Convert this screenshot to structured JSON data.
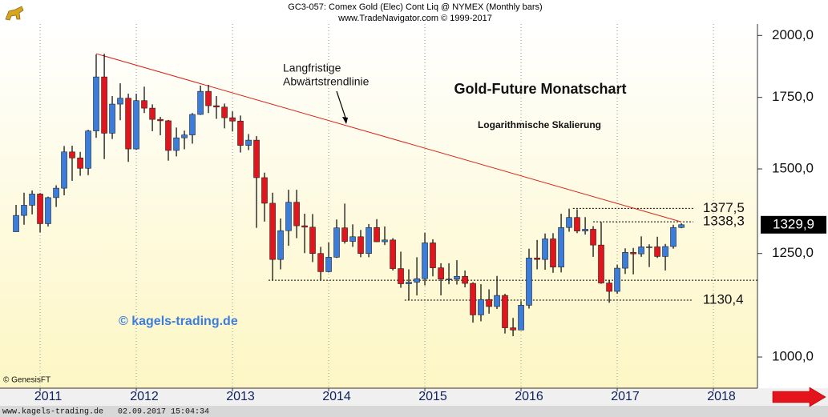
{
  "chart_data": {
    "type": "candlestick",
    "title": "GC3-057:  Comex Gold (Elec) Cont Liq @ NYMEX  (Monthly bars)",
    "subtitle": "www.TradeNavigator.com © 1999-2017",
    "chart_title": "Gold-Future Monatschart",
    "scale_note": "Logarithmische Skalierung",
    "trend_note": [
      "Langfristige",
      "Abwärtstrendlinie"
    ],
    "watermark": "© kagels-trading.de",
    "source": "© GenesisFT",
    "footer": "www.kagels-trading.de   02.09.2017 15:04:34",
    "log_scale": true,
    "grid": true,
    "up_color": "#3b7ddd",
    "down_color": "#e3141b",
    "trend_color": "#d9241c",
    "xlim": [
      2010.583,
      2018.458
    ],
    "xticks": [
      2011,
      2012,
      2013,
      2014,
      2015,
      2016,
      2017,
      2018
    ],
    "ylim": [
      935,
      2050
    ],
    "yticks": [
      {
        "value": 1000,
        "label": "1000,0"
      },
      {
        "value": 1250,
        "label": "1250,0"
      },
      {
        "value": 1500,
        "label": "1500,0"
      },
      {
        "value": 1750,
        "label": "1750,0"
      },
      {
        "value": 2000,
        "label": "2000,0"
      }
    ],
    "x": [
      2010.75,
      2010.833,
      2010.917,
      2011,
      2011.083,
      2011.167,
      2011.25,
      2011.333,
      2011.417,
      2011.5,
      2011.583,
      2011.667,
      2011.75,
      2011.833,
      2011.917,
      2012,
      2012.083,
      2012.167,
      2012.25,
      2012.333,
      2012.417,
      2012.5,
      2012.583,
      2012.667,
      2012.75,
      2012.833,
      2012.917,
      2013,
      2013.083,
      2013.167,
      2013.25,
      2013.333,
      2013.417,
      2013.5,
      2013.583,
      2013.667,
      2013.75,
      2013.833,
      2013.917,
      2014,
      2014.083,
      2014.167,
      2014.25,
      2014.333,
      2014.417,
      2014.5,
      2014.583,
      2014.667,
      2014.75,
      2014.833,
      2014.917,
      2015,
      2015.083,
      2015.167,
      2015.25,
      2015.333,
      2015.417,
      2015.5,
      2015.583,
      2015.667,
      2015.75,
      2015.833,
      2015.917,
      2016,
      2016.083,
      2016.167,
      2016.25,
      2016.333,
      2016.417,
      2016.5,
      2016.583,
      2016.667,
      2016.75,
      2016.833,
      2016.917,
      2017,
      2017.083,
      2017.167,
      2017.25,
      2017.333,
      2017.417,
      2017.5,
      2017.583,
      2017.667
    ],
    "open": [
      1310,
      1357,
      1387,
      1421,
      1333,
      1410,
      1439,
      1556,
      1536,
      1502,
      1628,
      1829,
      1620,
      1725,
      1747,
      1566,
      1738,
      1710,
      1669,
      1664,
      1561,
      1604,
      1614,
      1687,
      1773,
      1719,
      1714,
      1675,
      1663,
      1578,
      1596,
      1472,
      1393,
      1234,
      1313,
      1396,
      1327,
      1323,
      1250,
      1202,
      1240,
      1321,
      1283,
      1296,
      1250,
      1322,
      1282,
      1287,
      1210,
      1171,
      1175,
      1184,
      1279,
      1212,
      1183,
      1183,
      1190,
      1172,
      1095,
      1132,
      1115,
      1142,
      1065,
      1060,
      1118,
      1238,
      1234,
      1290,
      1214,
      1322,
      1351,
      1312,
      1317,
      1273,
      1173,
      1152,
      1211,
      1253,
      1249,
      1268,
      1268,
      1242,
      1269,
      1322
    ],
    "high": [
      1388,
      1425,
      1432,
      1424,
      1413,
      1448,
      1576,
      1577,
      1556,
      1632,
      1920,
      1923,
      1755,
      1804,
      1764,
      1764,
      1791,
      1724,
      1678,
      1667,
      1640,
      1629,
      1692,
      1795,
      1798,
      1755,
      1727,
      1698,
      1683,
      1617,
      1610,
      1488,
      1425,
      1348,
      1434,
      1434,
      1362,
      1361,
      1268,
      1280,
      1345,
      1392,
      1331,
      1315,
      1332,
      1346,
      1325,
      1292,
      1255,
      1208,
      1240,
      1307,
      1289,
      1224,
      1224,
      1232,
      1205,
      1175,
      1170,
      1157,
      1191,
      1146,
      1088,
      1128,
      1263,
      1287,
      1305,
      1306,
      1362,
      1377,
      1375,
      1352,
      1326,
      1338,
      1180,
      1220,
      1264,
      1265,
      1297,
      1275,
      1296,
      1276,
      1330,
      1334
    ],
    "low": [
      1315,
      1330,
      1360,
      1308,
      1325,
      1382,
      1417,
      1462,
      1478,
      1480,
      1604,
      1532,
      1600,
      1666,
      1523,
      1563,
      1692,
      1627,
      1613,
      1527,
      1541,
      1565,
      1584,
      1685,
      1692,
      1671,
      1637,
      1626,
      1554,
      1562,
      1321,
      1339,
      1180,
      1208,
      1271,
      1292,
      1251,
      1227,
      1181,
      1200,
      1238,
      1277,
      1268,
      1240,
      1240,
      1281,
      1273,
      1205,
      1161,
      1131,
      1142,
      1167,
      1190,
      1142,
      1170,
      1169,
      1162,
      1077,
      1080,
      1098,
      1109,
      1052,
      1046,
      1061,
      1110,
      1208,
      1207,
      1199,
      1200,
      1310,
      1306,
      1302,
      1241,
      1171,
      1124,
      1146,
      1196,
      1195,
      1241,
      1214,
      1238,
      1205,
      1263,
      1320
    ],
    "close": [
      1357,
      1387,
      1421,
      1333,
      1410,
      1439,
      1556,
      1536,
      1502,
      1628,
      1829,
      1620,
      1725,
      1747,
      1566,
      1738,
      1710,
      1669,
      1664,
      1561,
      1604,
      1614,
      1687,
      1773,
      1719,
      1714,
      1675,
      1663,
      1578,
      1596,
      1472,
      1393,
      1234,
      1313,
      1396,
      1327,
      1323,
      1250,
      1202,
      1240,
      1321,
      1283,
      1296,
      1250,
      1322,
      1282,
      1287,
      1210,
      1171,
      1175,
      1184,
      1279,
      1212,
      1183,
      1183,
      1190,
      1172,
      1095,
      1132,
      1115,
      1142,
      1065,
      1060,
      1118,
      1238,
      1234,
      1290,
      1214,
      1322,
      1351,
      1312,
      1317,
      1273,
      1173,
      1152,
      1211,
      1253,
      1249,
      1268,
      1268,
      1242,
      1269,
      1322,
      1330
    ],
    "trendline": {
      "x": [
        2011.583,
        2017.667
      ],
      "y": [
        1923,
        1338
      ]
    },
    "levels": [
      {
        "value": 1377.5,
        "label": "1377,5",
        "x": [
          2016.54,
          2017.79
        ]
      },
      {
        "value": 1338.3,
        "label": "1338,3",
        "x": [
          2016.75,
          2017.79
        ]
      },
      {
        "value": 1180,
        "x": [
          2013.375,
          2018.458
        ]
      },
      {
        "value": 1130.4,
        "label": "1130,4",
        "x": [
          2014.79,
          2017.79
        ]
      }
    ],
    "last_price": {
      "value": 1329.9,
      "label": "1329,9"
    }
  }
}
